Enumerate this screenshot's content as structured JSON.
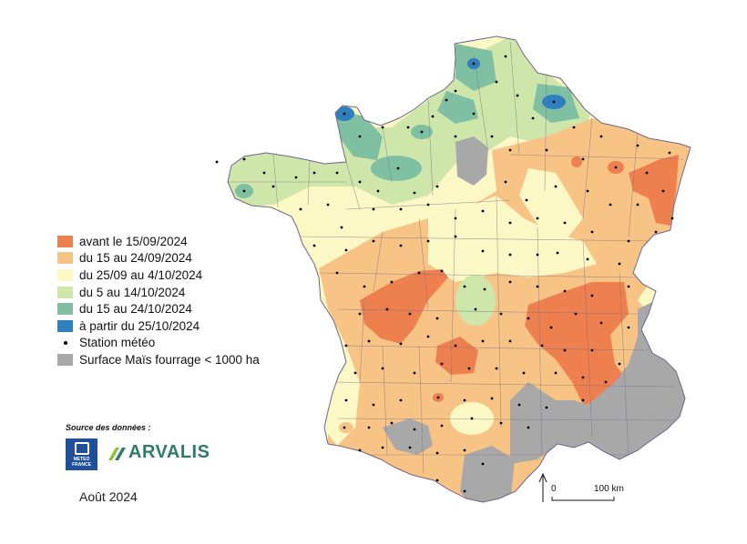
{
  "legend": {
    "items": [
      {
        "label": "avant le 15/09/2024",
        "color": "#ee7f4e"
      },
      {
        "label": "du 15 au 24/09/2024",
        "color": "#f7c486"
      },
      {
        "label": "du 25/09 au 4/10/2024",
        "color": "#fcf8c6"
      },
      {
        "label": "du 5 au 14/10/2024",
        "color": "#cfe6ab"
      },
      {
        "label": "du 15 au 24/10/2024",
        "color": "#80c0a2"
      },
      {
        "label": "à partir du 25/10/2024",
        "color": "#2f7fbe"
      }
    ],
    "station_label": "Station météo",
    "gray_label": "Surface Maïs fourrage < 1000 ha",
    "gray_color": "#a8a8a8"
  },
  "source": {
    "title": "Source des données :",
    "meteo_line1": "METEO",
    "meteo_line2": "FRANCE",
    "arvalis": "ARVALIS"
  },
  "date": "Août 2024",
  "scale": {
    "zero": "0",
    "end": "100 km"
  }
}
